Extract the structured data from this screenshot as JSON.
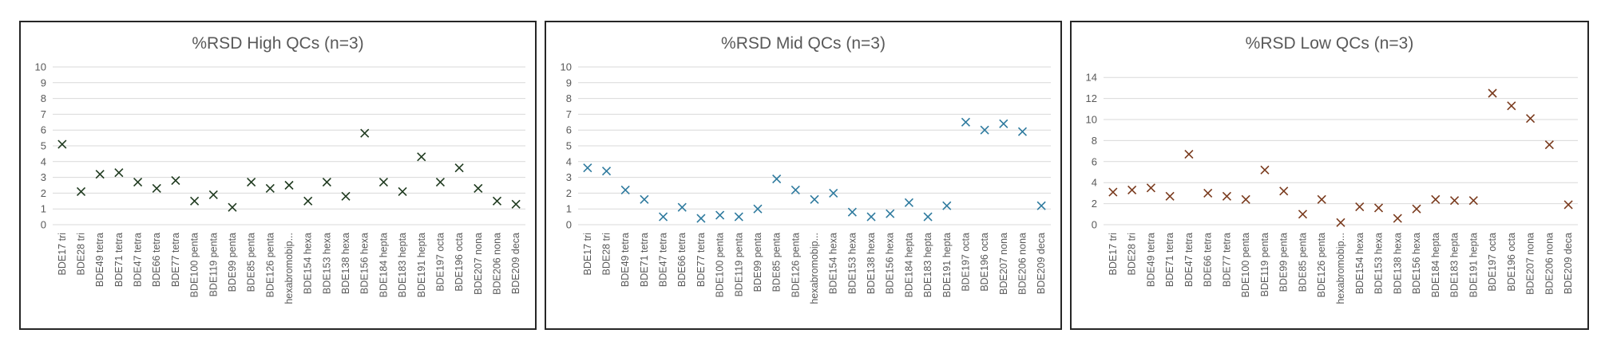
{
  "chart_data": [
    {
      "type": "scatter",
      "title": "%RSD High QCs (n=3)",
      "xlabel": "",
      "ylabel": "",
      "ylim": [
        0,
        10
      ],
      "yticks": [
        0,
        1,
        2,
        3,
        4,
        5,
        6,
        7,
        8,
        9,
        10
      ],
      "grid": true,
      "marker": "x",
      "color": "#1f3a1f",
      "categories": [
        "BDE17 tri",
        "BDE28 tri",
        "BDE49 tetra",
        "BDE71 tetra",
        "BDE47 tetra",
        "BDE66 tetra",
        "BDE77 tetra",
        "BDE100 penta",
        "BDE119 penta",
        "BDE99 penta",
        "BDE85 penta",
        "BDE126 penta",
        "hexabromobip...",
        "BDE154 hexa",
        "BDE153 hexa",
        "BDE138 hexa",
        "BDE156 hexa",
        "BDE184 hepta",
        "BDE183 hepta",
        "BDE191 hepta",
        "BDE197 octa",
        "BDE196 octa",
        "BDE207 nona",
        "BDE206 nona",
        "BDE209 deca"
      ],
      "values": [
        5.1,
        2.1,
        3.2,
        3.3,
        2.7,
        2.3,
        2.8,
        1.5,
        1.9,
        1.1,
        2.7,
        2.3,
        2.5,
        1.5,
        2.7,
        1.8,
        5.8,
        2.7,
        2.1,
        4.3,
        2.7,
        3.6,
        2.3,
        1.5,
        1.3
      ]
    },
    {
      "type": "scatter",
      "title": "%RSD Mid QCs (n=3)",
      "xlabel": "",
      "ylabel": "",
      "ylim": [
        0,
        10
      ],
      "yticks": [
        0,
        1,
        2,
        3,
        4,
        5,
        6,
        7,
        8,
        9,
        10
      ],
      "grid": true,
      "marker": "x",
      "color": "#2e7a9e",
      "categories": [
        "BDE17 tri",
        "BDE28 tri",
        "BDE49 tetra",
        "BDE71 tetra",
        "BDE47 tetra",
        "BDE66 tetra",
        "BDE77 tetra",
        "BDE100 penta",
        "BDE119 penta",
        "BDE99 penta",
        "BDE85 penta",
        "BDE126 penta",
        "hexabromobip...",
        "BDE154 hexa",
        "BDE153 hexa",
        "BDE138 hexa",
        "BDE156 hexa",
        "BDE184 hepta",
        "BDE183 hepta",
        "BDE191 hepta",
        "BDE197 octa",
        "BDE196 octa",
        "BDE207 nona",
        "BDE206 nona",
        "BDE209 deca"
      ],
      "values": [
        3.6,
        3.4,
        2.2,
        1.6,
        0.5,
        1.1,
        0.4,
        0.6,
        0.5,
        1.0,
        2.9,
        2.2,
        1.6,
        2.0,
        0.8,
        0.5,
        0.7,
        1.4,
        0.5,
        1.2,
        6.5,
        6.0,
        6.4,
        5.9,
        1.2
      ]
    },
    {
      "type": "scatter",
      "title": "%RSD Low QCs (n=3)",
      "xlabel": "",
      "ylabel": "",
      "ylim": [
        0,
        15
      ],
      "yticks": [
        0,
        2,
        4,
        6,
        8,
        10,
        12,
        14
      ],
      "grid": true,
      "marker": "x",
      "color": "#7a3b1e",
      "categories": [
        "BDE17 tri",
        "BDE28 tri",
        "BDE49 tetra",
        "BDE71 tetra",
        "BDE47 tetra",
        "BDE66 tetra",
        "BDE77 tetra",
        "BDE100 penta",
        "BDE119 penta",
        "BDE99 penta",
        "BDE85 penta",
        "BDE126 penta",
        "hexabromobip...",
        "BDE154 hexa",
        "BDE153 hexa",
        "BDE138 hexa",
        "BDE156 hexa",
        "BDE184 hepta",
        "BDE183 hepta",
        "BDE191 hepta",
        "BDE197 octa",
        "BDE196 octa",
        "BDE207 nona",
        "BDE206 nona",
        "BDE209 deca"
      ],
      "values": [
        3.1,
        3.3,
        3.5,
        2.7,
        6.7,
        3.0,
        2.7,
        2.4,
        5.2,
        3.2,
        1.0,
        2.4,
        0.2,
        1.7,
        1.6,
        0.6,
        1.5,
        2.4,
        2.3,
        2.3,
        12.5,
        11.3,
        10.1,
        7.6,
        1.9
      ]
    }
  ]
}
